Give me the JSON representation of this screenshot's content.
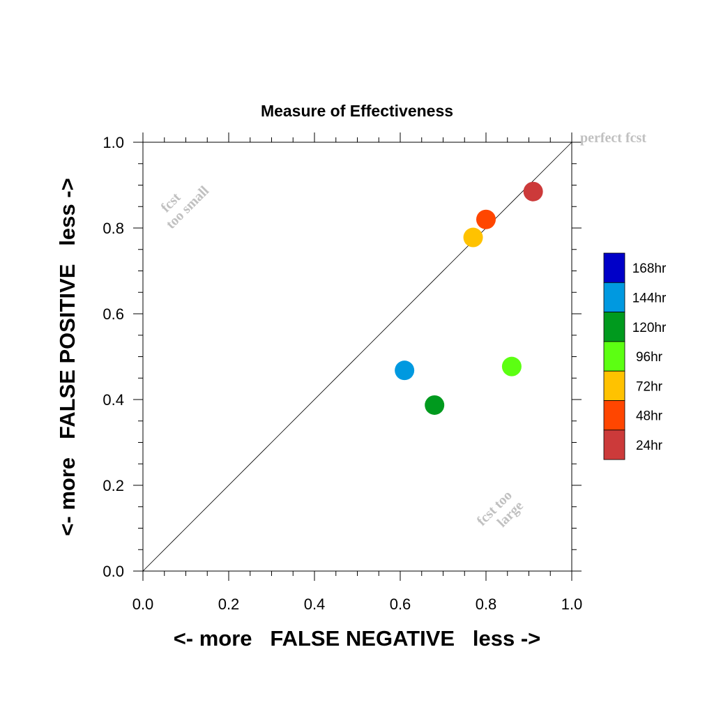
{
  "chart_data": {
    "type": "scatter",
    "title": "Measure of Effectiveness",
    "xlabel": "<- more   FALSE NEGATIVE   less ->",
    "ylabel": "<- more   FALSE POSITIVE   less ->",
    "xlim": [
      0.0,
      1.0
    ],
    "ylim": [
      0.0,
      1.0
    ],
    "x_ticks": [
      "0.0",
      "0.2",
      "0.4",
      "0.6",
      "0.8",
      "1.0"
    ],
    "y_ticks": [
      "0.0",
      "0.2",
      "0.4",
      "0.6",
      "0.8",
      "1.0"
    ],
    "grid": false,
    "diagonal_line": true,
    "legend_placement": "right",
    "annotations": {
      "perfect": "perfect fcst",
      "too_small_line1": "fcst",
      "too_small_line2": "too small",
      "too_large_line1": "fcst too",
      "too_large_line2": "large"
    },
    "legend": [
      {
        "label": "168hr",
        "color": "#0000c8"
      },
      {
        "label": "144hr",
        "color": "#0099e0"
      },
      {
        "label": "120hr",
        "color": "#009a1e"
      },
      {
        "label": "96hr",
        "color": "#5cff12"
      },
      {
        "label": "72hr",
        "color": "#ffc200"
      },
      {
        "label": "48hr",
        "color": "#ff4600"
      },
      {
        "label": "24hr",
        "color": "#cc3a3a"
      }
    ],
    "series": [
      {
        "name": "24hr",
        "x": 0.91,
        "y": 0.885,
        "color": "#cc3a3a"
      },
      {
        "name": "48hr",
        "x": 0.8,
        "y": 0.82,
        "color": "#ff4600"
      },
      {
        "name": "72hr",
        "x": 0.77,
        "y": 0.778,
        "color": "#ffc200"
      },
      {
        "name": "96hr",
        "x": 0.86,
        "y": 0.477,
        "color": "#5cff12"
      },
      {
        "name": "120hr",
        "x": 0.68,
        "y": 0.387,
        "color": "#009a1e"
      },
      {
        "name": "144hr",
        "x": 0.61,
        "y": 0.468,
        "color": "#0099e0"
      }
    ]
  }
}
